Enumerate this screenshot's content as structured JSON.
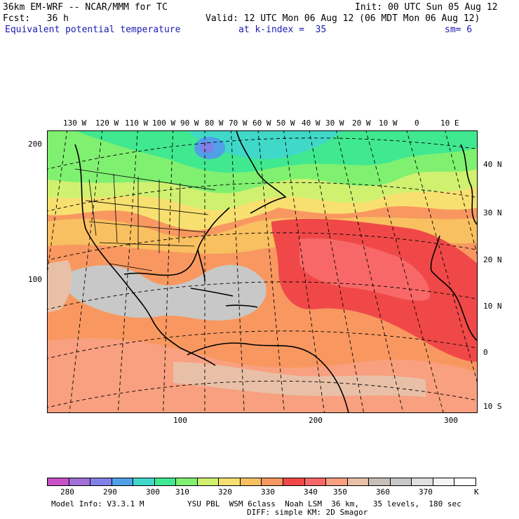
{
  "header": {
    "model": "36km EM-WRF -- NCAR/MMM for TC",
    "init": "Init: 00 UTC Sun 05 Aug 12",
    "fcst": "Fcst:   36 h",
    "valid": "Valid: 12 UTC Mon 06 Aug 12 (06 MDT Mon 06 Aug 12)",
    "field": "Equivalent potential temperature",
    "level": "at k-index =  35",
    "smoothing": "sm= 6"
  },
  "map": {
    "lon_labels": [
      "130 W",
      "120 W",
      "110 W",
      "100 W",
      "90 W",
      "80 W",
      "70 W",
      "60 W",
      "50 W",
      "40 W",
      "30 W",
      "20 W",
      "10 W",
      "0",
      "10 E"
    ],
    "lat_labels": [
      "40 N",
      "30 N",
      "20 N",
      "10 N",
      "0",
      "10 S"
    ],
    "grid_y_labels": [
      "200",
      "100"
    ],
    "grid_x_labels": [
      "100",
      "200",
      "300"
    ]
  },
  "colorbar": {
    "colors": [
      "#c850c8",
      "#a070d8",
      "#8080e8",
      "#50a0e8",
      "#40d8c8",
      "#40e890",
      "#80f070",
      "#d0f070",
      "#f8e070",
      "#f8c060",
      "#f89860",
      "#f04848",
      "#f86868",
      "#f8a080",
      "#e8c0a8",
      "#c8c0b8",
      "#c8c8c8",
      "#e0e0e0",
      "#f4f4f4",
      "#ffffff"
    ],
    "labels": [
      "280",
      "290",
      "300",
      "310",
      "320",
      "330",
      "340",
      "350",
      "360",
      "370"
    ],
    "unit": "K"
  },
  "footer": {
    "model_info": "Model Info: V3.3.1 M",
    "physics": "YSU PBL  WSM 6class  Noah LSM  36 km,   35 levels,  180 sec",
    "diffusion": "DIFF: simple KM: 2D Smagor"
  }
}
